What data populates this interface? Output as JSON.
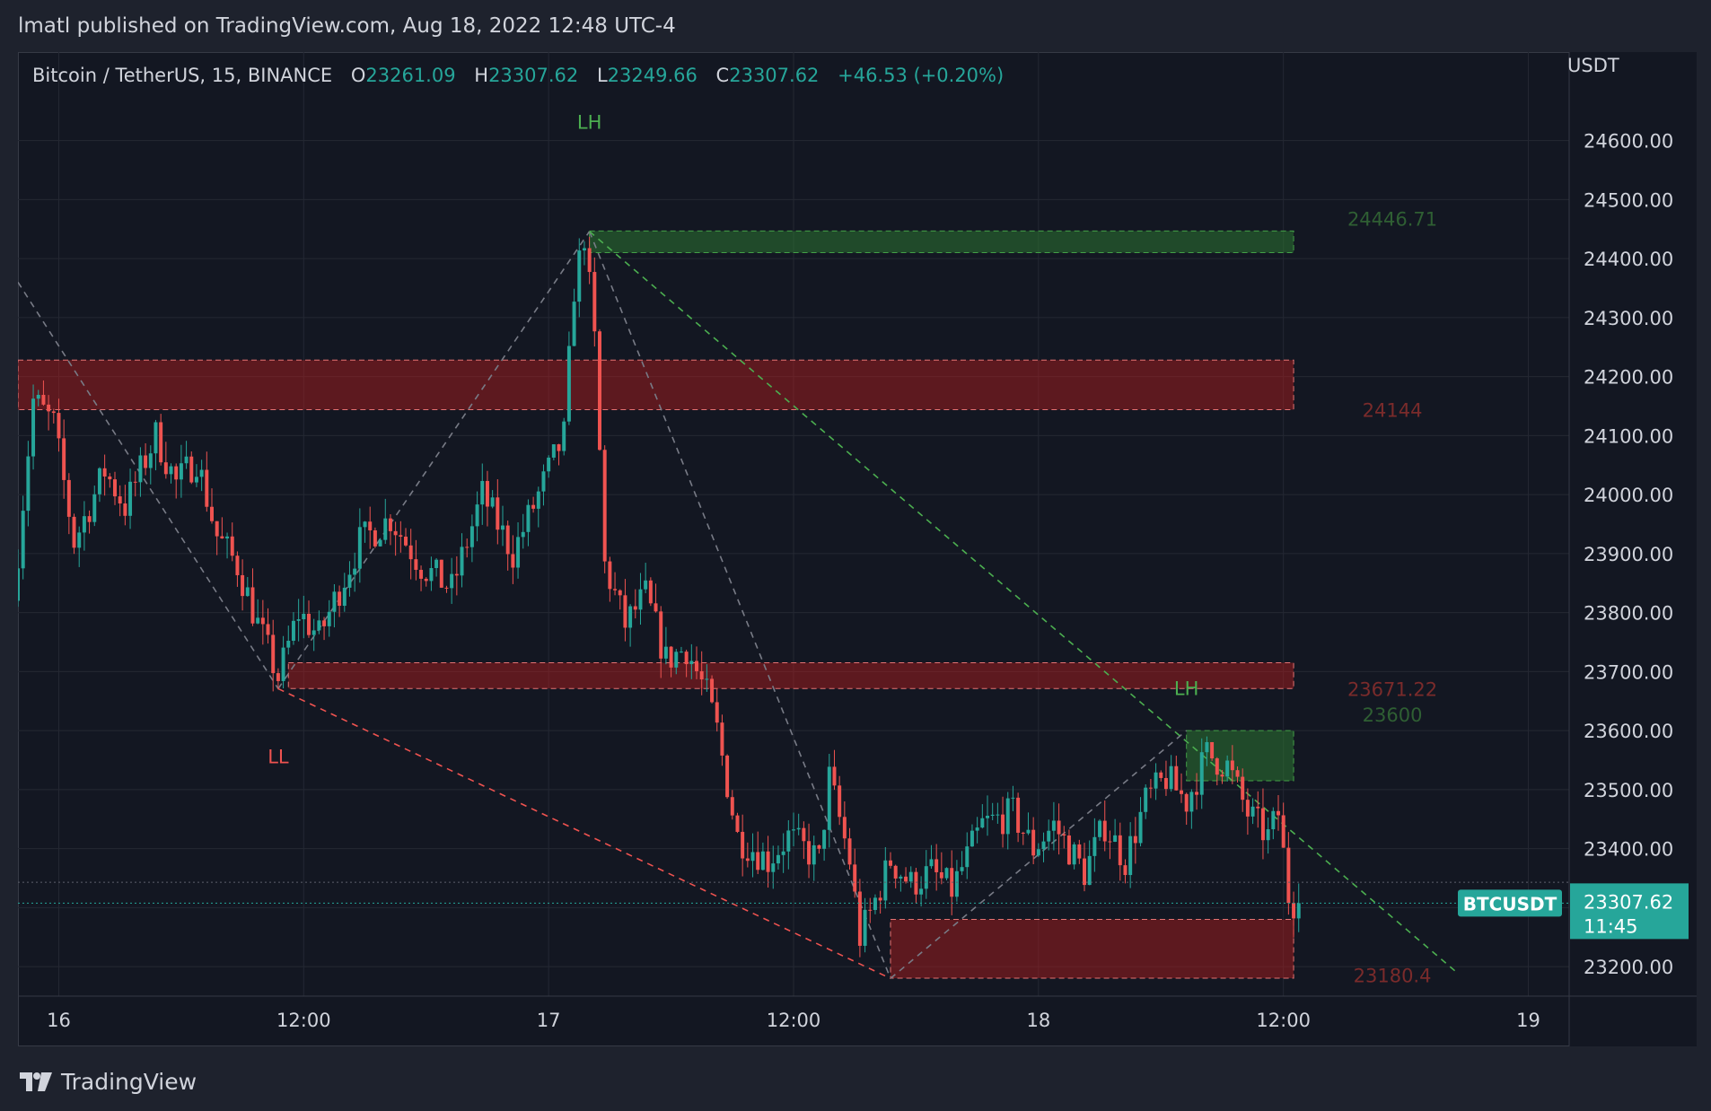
{
  "header": {
    "published_text": "lmatl published on TradingView.com, Aug 18, 2022 12:48 UTC-4"
  },
  "legend": {
    "symbol": "Bitcoin / TetherUS, 15, BINANCE",
    "o_label": "O",
    "o_value": "23261.09",
    "h_label": "H",
    "h_value": "23307.62",
    "l_label": "L",
    "l_value": "23249.66",
    "c_label": "C",
    "c_value": "23307.62",
    "change": "+46.53 (+0.20%)"
  },
  "footer": {
    "brand": "TradingView"
  },
  "colors": {
    "background": "#131722",
    "up": "#26a69a",
    "down": "#ef5350",
    "demand_zone": "#2e7d32",
    "supply_zone": "#b71c1c",
    "grid": "#2a2e39"
  },
  "chart_data": {
    "type": "candlestick",
    "symbol": "BTCUSDT",
    "exchange": "BINANCE",
    "interval": "15",
    "y_unit": "USDT",
    "ylim": [
      23150,
      24750
    ],
    "yticks": [
      "24600.00",
      "24500.00",
      "24400.00",
      "24300.00",
      "24200.00",
      "24100.00",
      "24000.00",
      "23900.00",
      "23800.00",
      "23700.00",
      "23600.00",
      "23500.00",
      "23400.00",
      "23300.00",
      "23200.00"
    ],
    "x_axis": {
      "start": "2022-08-15 22:00",
      "end": "2022-08-19 02:00",
      "tick_labels": [
        "16",
        "12:00",
        "17",
        "12:00",
        "18",
        "12:00",
        "19"
      ],
      "tick_times": [
        "2022-08-16 00:00",
        "2022-08-16 12:00",
        "2022-08-17 00:00",
        "2022-08-17 12:00",
        "2022-08-18 00:00",
        "2022-08-18 12:00",
        "2022-08-19 00:00"
      ]
    },
    "grid": true,
    "last_price": {
      "label": "BTCUSDT",
      "value": "23307.62",
      "countdown": "11:45"
    },
    "price_path": [
      [
        "2022-08-15 22:00",
        23820
      ],
      [
        "2022-08-15 23:00",
        24160
      ],
      [
        "2022-08-16 00:00",
        24120
      ],
      [
        "2022-08-16 01:00",
        23920
      ],
      [
        "2022-08-16 02:30",
        24040
      ],
      [
        "2022-08-16 03:30",
        23980
      ],
      [
        "2022-08-16 05:00",
        24100
      ],
      [
        "2022-08-16 06:00",
        24020
      ],
      [
        "2022-08-16 07:00",
        24060
      ],
      [
        "2022-08-16 08:00",
        23930
      ],
      [
        "2022-08-16 09:00",
        23880
      ],
      [
        "2022-08-16 10:00",
        23780
      ],
      [
        "2022-08-16 11:00",
        23690
      ],
      [
        "2022-08-16 12:00",
        23800
      ],
      [
        "2022-08-16 13:00",
        23760
      ],
      [
        "2022-08-16 14:00",
        23840
      ],
      [
        "2022-08-16 15:00",
        23920
      ],
      [
        "2022-08-16 16:30",
        23960
      ],
      [
        "2022-08-16 18:00",
        23880
      ],
      [
        "2022-08-16 19:30",
        23840
      ],
      [
        "2022-08-16 21:00",
        24000
      ],
      [
        "2022-08-16 22:30",
        23900
      ],
      [
        "2022-08-17 00:00",
        24020
      ],
      [
        "2022-08-17 01:00",
        24100
      ],
      [
        "2022-08-17 01:30",
        24350
      ],
      [
        "2022-08-17 02:00",
        24440
      ],
      [
        "2022-08-17 02:30",
        24260
      ],
      [
        "2022-08-17 03:00",
        23880
      ],
      [
        "2022-08-17 04:00",
        23780
      ],
      [
        "2022-08-17 05:00",
        23830
      ],
      [
        "2022-08-17 06:00",
        23720
      ],
      [
        "2022-08-17 07:00",
        23740
      ],
      [
        "2022-08-17 08:00",
        23660
      ],
      [
        "2022-08-17 08:30",
        23600
      ],
      [
        "2022-08-17 09:30",
        23420
      ],
      [
        "2022-08-17 11:00",
        23380
      ],
      [
        "2022-08-17 12:00",
        23420
      ],
      [
        "2022-08-17 13:30",
        23380
      ],
      [
        "2022-08-17 14:00",
        23520
      ],
      [
        "2022-08-17 15:00",
        23380
      ],
      [
        "2022-08-17 15:30",
        23250
      ],
      [
        "2022-08-17 16:00",
        23290
      ],
      [
        "2022-08-17 17:00",
        23380
      ],
      [
        "2022-08-17 18:00",
        23340
      ],
      [
        "2022-08-17 19:00",
        23360
      ],
      [
        "2022-08-17 20:00",
        23330
      ],
      [
        "2022-08-17 21:30",
        23440
      ],
      [
        "2022-08-17 23:00",
        23460
      ],
      [
        "2022-08-18 00:00",
        23400
      ],
      [
        "2022-08-18 01:00",
        23440
      ],
      [
        "2022-08-18 02:30",
        23360
      ],
      [
        "2022-08-18 03:30",
        23440
      ],
      [
        "2022-08-18 04:30",
        23380
      ],
      [
        "2022-08-18 05:30",
        23480
      ],
      [
        "2022-08-18 06:30",
        23520
      ],
      [
        "2022-08-18 07:30",
        23480
      ],
      [
        "2022-08-18 08:30",
        23560
      ],
      [
        "2022-08-18 09:30",
        23540
      ],
      [
        "2022-08-18 10:30",
        23460
      ],
      [
        "2022-08-18 11:30",
        23420
      ],
      [
        "2022-08-18 12:00",
        23460
      ],
      [
        "2022-08-18 12:30",
        23320
      ],
      [
        "2022-08-18 12:48",
        23307.62
      ]
    ],
    "zones": [
      {
        "kind": "demand",
        "top": 24446.71,
        "bottom": 24410,
        "start": "2022-08-17 02:00",
        "end": "2022-08-18 12:30",
        "label": "24446.71"
      },
      {
        "kind": "supply",
        "top": 24228,
        "bottom": 24144,
        "start": "2022-08-15 22:00",
        "end": "2022-08-18 12:30",
        "label": "24144"
      },
      {
        "kind": "supply",
        "top": 23715,
        "bottom": 23671.22,
        "start": "2022-08-16 11:15",
        "end": "2022-08-18 12:30",
        "label": "23671.22"
      },
      {
        "kind": "demand",
        "top": 23600,
        "bottom": 23515,
        "start": "2022-08-18 07:15",
        "end": "2022-08-18 12:30",
        "label": "23600"
      },
      {
        "kind": "supply",
        "top": 23280,
        "bottom": 23180.4,
        "start": "2022-08-17 16:45",
        "end": "2022-08-18 12:30",
        "label": "23180.4"
      }
    ],
    "annotations": [
      {
        "text": "LH",
        "time": "2022-08-17 02:00",
        "price": 24620,
        "color": "#4caf50"
      },
      {
        "text": "LH",
        "time": "2022-08-18 07:15",
        "price": 23660,
        "color": "#4caf50"
      },
      {
        "text": "LL",
        "time": "2022-08-16 10:45",
        "price": 23545,
        "color": "#ef5350"
      }
    ],
    "lines": [
      {
        "style": "gray-dash",
        "points": [
          [
            "2022-08-15 22:00",
            24360
          ],
          [
            "2022-08-16 10:45",
            23671
          ]
        ]
      },
      {
        "style": "gray-dash",
        "points": [
          [
            "2022-08-16 10:45",
            23671
          ],
          [
            "2022-08-17 02:00",
            24446
          ]
        ]
      },
      {
        "style": "gray-dash",
        "points": [
          [
            "2022-08-17 02:00",
            24446
          ],
          [
            "2022-08-17 16:45",
            23180
          ]
        ]
      },
      {
        "style": "gray-dash",
        "points": [
          [
            "2022-08-17 16:45",
            23180
          ],
          [
            "2022-08-18 07:15",
            23600
          ]
        ]
      },
      {
        "style": "green-dash",
        "points": [
          [
            "2022-08-17 02:00",
            24446
          ],
          [
            "2022-08-18 20:30",
            23190
          ]
        ]
      },
      {
        "style": "red-dash",
        "points": [
          [
            "2022-08-16 10:45",
            23671
          ],
          [
            "2022-08-17 16:45",
            23180
          ]
        ]
      }
    ]
  }
}
